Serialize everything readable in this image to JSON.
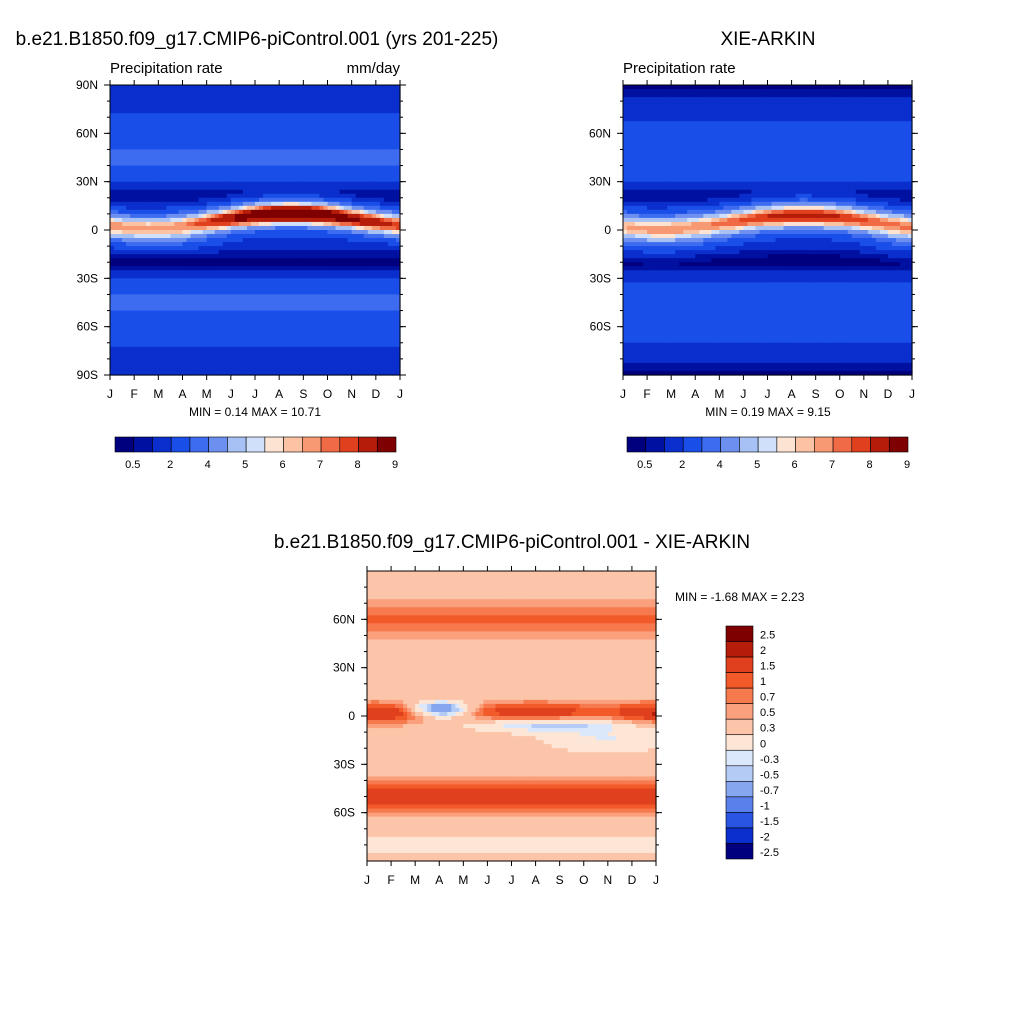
{
  "chart_data": [
    {
      "type": "heatmap",
      "title": "b.e21.B1850.f09_g17.CMIP6-piControl.001 (yrs 201-225)",
      "subtitle_left": "Precipitation rate",
      "subtitle_right": "mm/day",
      "x_ticks": [
        "J",
        "F",
        "M",
        "A",
        "M",
        "J",
        "J",
        "A",
        "S",
        "O",
        "N",
        "D",
        "J"
      ],
      "y_ticks": [
        "90N",
        "60N",
        "30N",
        "0",
        "30S",
        "60S",
        "90S"
      ],
      "ylim": [
        -90,
        90
      ],
      "min_max_text": "MIN =   0.14 MAX =  10.71",
      "colorbar_labels": [
        "0.5",
        "2",
        "4",
        "5",
        "6",
        "7",
        "8",
        "9"
      ],
      "colorbar_colors": [
        "#00007f",
        "#0010a0",
        "#0a2fcc",
        "#1a4ee8",
        "#3e6cf0",
        "#6d8ff0",
        "#a7c1f4",
        "#d0e0fa",
        "#fde4d2",
        "#fcc2a4",
        "#f79a73",
        "#f06a45",
        "#e0401e",
        "#b51d0a",
        "#7f0000"
      ],
      "fields": {
        "min": 0.14,
        "max": 10.71,
        "itcz_peak_month": "August",
        "itcz_peak_lat": 8
      }
    },
    {
      "type": "heatmap",
      "title": "XIE-ARKIN",
      "subtitle_left": "Precipitation rate",
      "x_ticks": [
        "J",
        "F",
        "M",
        "A",
        "M",
        "J",
        "J",
        "A",
        "S",
        "O",
        "N",
        "D",
        "J"
      ],
      "y_ticks": [
        "60N",
        "30N",
        "0",
        "30S",
        "60S"
      ],
      "ylim": [
        -90,
        90
      ],
      "min_max_text": "MIN =   0.19 MAX =   9.15",
      "colorbar_labels": [
        "0.5",
        "2",
        "4",
        "5",
        "6",
        "7",
        "8",
        "9"
      ],
      "fields": {
        "min": 0.19,
        "max": 9.15
      }
    },
    {
      "type": "heatmap",
      "title": "b.e21.B1850.f09_g17.CMIP6-piControl.001 - XIE-ARKIN",
      "x_ticks": [
        "J",
        "F",
        "M",
        "A",
        "M",
        "J",
        "J",
        "A",
        "S",
        "O",
        "N",
        "D",
        "J"
      ],
      "y_ticks": [
        "60N",
        "30N",
        "0",
        "30S",
        "60S"
      ],
      "ylim": [
        -90,
        90
      ],
      "min_max_text": "MIN =  -1.68 MAX =    2.23",
      "colorbar_labels": [
        "2.5",
        "2",
        "1.5",
        "1",
        "0.7",
        "0.5",
        "0.3",
        "0",
        "-0.3",
        "-0.5",
        "-0.7",
        "-1",
        "-1.5",
        "-2",
        "-2.5"
      ],
      "colorbar_colors": [
        "#7f0000",
        "#b51d0a",
        "#e0401e",
        "#f25a2a",
        "#f77a4e",
        "#fba07c",
        "#fcc4a8",
        "#fde6d6",
        "#dbe7fb",
        "#b4cbf6",
        "#86a6f0",
        "#5a80ec",
        "#2a55e2",
        "#0a2fcc",
        "#00007f"
      ],
      "fields": {
        "min": -1.68,
        "max": 2.23
      }
    }
  ]
}
